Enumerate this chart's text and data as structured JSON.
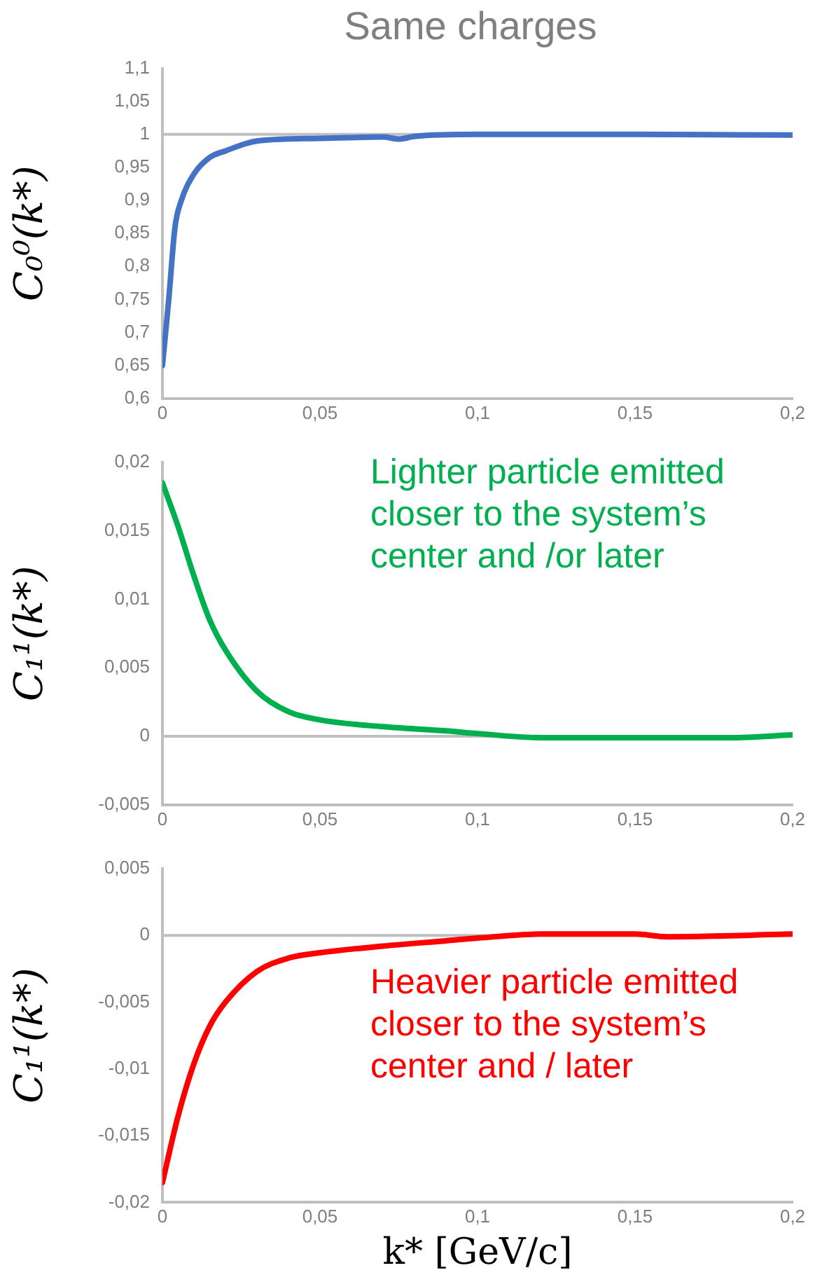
{
  "chart_data": [
    {
      "type": "line",
      "title": "Same charges",
      "ylabel": "C₀⁰(k*)",
      "legend": false,
      "grid": false,
      "marker": "none",
      "line_style": "solid",
      "xlim": [
        0,
        0.2
      ],
      "xticks": [
        {
          "value": 0,
          "label": "0"
        },
        {
          "value": 0.05,
          "label": "0,05"
        },
        {
          "value": 0.1,
          "label": "0,1"
        },
        {
          "value": 0.15,
          "label": "0,15"
        },
        {
          "value": 0.2,
          "label": "0,2"
        }
      ],
      "ylim": [
        0.6,
        1.1
      ],
      "yticks": [
        {
          "value": 0.6,
          "label": "0,6"
        },
        {
          "value": 0.65,
          "label": "0,65"
        },
        {
          "value": 0.7,
          "label": "0,7"
        },
        {
          "value": 0.75,
          "label": "0,75"
        },
        {
          "value": 0.8,
          "label": "0,8"
        },
        {
          "value": 0.85,
          "label": "0,85"
        },
        {
          "value": 0.9,
          "label": "0,9"
        },
        {
          "value": 0.95,
          "label": "0,95"
        },
        {
          "value": 1,
          "label": "1"
        },
        {
          "value": 1.05,
          "label": "1,05"
        },
        {
          "value": 1.1,
          "label": "1,1"
        }
      ],
      "ref_lines": [
        {
          "axis": "y",
          "value": 1,
          "color": "#bfbfbf"
        }
      ],
      "x": [
        0,
        0.002,
        0.004,
        0.006,
        0.01,
        0.015,
        0.02,
        0.03,
        0.05,
        0.07,
        0.075,
        0.08,
        0.1,
        0.15,
        0.2
      ],
      "series": [
        {
          "color": "#4472c4",
          "values": [
            0.65,
            0.75,
            0.86,
            0.9,
            0.94,
            0.965,
            0.975,
            0.99,
            0.994,
            0.996,
            0.993,
            0.997,
            1.0,
            1.0,
            0.999
          ]
        }
      ]
    },
    {
      "type": "line",
      "ylabel": "C₁¹(k*)",
      "legend": false,
      "grid": false,
      "marker": "none",
      "line_style": "solid",
      "annotations": [
        "Lighter particle emitted closer to the system’s center and /or later"
      ],
      "xlim": [
        0,
        0.2
      ],
      "xticks": [
        {
          "value": 0,
          "label": "0"
        },
        {
          "value": 0.05,
          "label": "0,05"
        },
        {
          "value": 0.1,
          "label": "0,1"
        },
        {
          "value": 0.15,
          "label": "0,15"
        },
        {
          "value": 0.2,
          "label": "0,2"
        }
      ],
      "ylim": [
        -0.005,
        0.02
      ],
      "yticks": [
        {
          "value": -0.005,
          "label": "-0,005"
        },
        {
          "value": 0,
          "label": "0"
        },
        {
          "value": 0.005,
          "label": "0,005"
        },
        {
          "value": 0.01,
          "label": "0,01"
        },
        {
          "value": 0.015,
          "label": "0,015"
        },
        {
          "value": 0.02,
          "label": "0,02"
        }
      ],
      "ref_lines": [
        {
          "axis": "y",
          "value": 0,
          "color": "#bfbfbf"
        }
      ],
      "x": [
        0,
        0.005,
        0.01,
        0.015,
        0.02,
        0.03,
        0.04,
        0.05,
        0.07,
        0.09,
        0.1,
        0.12,
        0.15,
        0.18,
        0.2
      ],
      "series": [
        {
          "color": "#00b050",
          "values": [
            0.0185,
            0.0153,
            0.0117,
            0.0085,
            0.0063,
            0.0033,
            0.0018,
            0.0012,
            0.0007,
            0.0004,
            0.0002,
            -0.0001,
            -0.0001,
            -0.0001,
            0.0001
          ]
        }
      ]
    },
    {
      "type": "line",
      "ylabel": "C₁¹(k*)",
      "xlabel": "k* [GeV/c]",
      "legend": false,
      "grid": false,
      "marker": "none",
      "line_style": "solid",
      "annotations": [
        "Heavier particle emitted closer to the system’s center and / later"
      ],
      "xlim": [
        0,
        0.2
      ],
      "xticks": [
        {
          "value": 0,
          "label": "0"
        },
        {
          "value": 0.05,
          "label": "0,05"
        },
        {
          "value": 0.1,
          "label": "0,1"
        },
        {
          "value": 0.15,
          "label": "0,15"
        },
        {
          "value": 0.2,
          "label": "0,2"
        }
      ],
      "ylim": [
        -0.02,
        0.005
      ],
      "yticks": [
        {
          "value": -0.02,
          "label": "-0,02"
        },
        {
          "value": -0.015,
          "label": "-0,015"
        },
        {
          "value": -0.01,
          "label": "-0,01"
        },
        {
          "value": -0.005,
          "label": "-0,005"
        },
        {
          "value": 0,
          "label": "0"
        },
        {
          "value": 0.005,
          "label": "0,005"
        }
      ],
      "ref_lines": [
        {
          "axis": "y",
          "value": 0,
          "color": "#bfbfbf"
        }
      ],
      "x": [
        0,
        0.005,
        0.01,
        0.015,
        0.02,
        0.03,
        0.04,
        0.05,
        0.07,
        0.09,
        0.1,
        0.12,
        0.15,
        0.16,
        0.2
      ],
      "series": [
        {
          "color": "#ff0000",
          "values": [
            -0.0185,
            -0.0135,
            -0.0096,
            -0.0068,
            -0.005,
            -0.0027,
            -0.0017,
            -0.0013,
            -0.0008,
            -0.0004,
            -0.0002,
            0.0001,
            0.0001,
            -0.0001,
            0.0001
          ]
        }
      ]
    }
  ]
}
